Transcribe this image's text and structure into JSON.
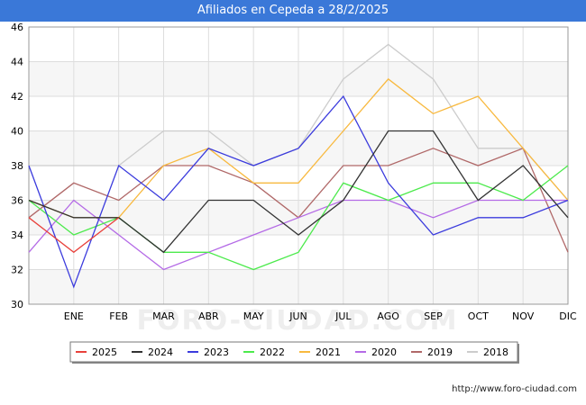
{
  "title": "Afiliados en Cepeda a 28/2/2025",
  "watermark": "FORO-CIUDAD.COM",
  "footer": "http://www.foro-ciudad.com",
  "chart_data": {
    "type": "line",
    "categories": [
      "",
      "ENE",
      "FEB",
      "MAR",
      "ABR",
      "MAY",
      "JUN",
      "JUL",
      "AGO",
      "SEP",
      "OCT",
      "NOV",
      "DIC"
    ],
    "ylim": [
      30,
      46
    ],
    "yticks": [
      30,
      32,
      34,
      36,
      38,
      40,
      42,
      44,
      46
    ],
    "grid": true,
    "legend_position": "bottom",
    "series": [
      {
        "name": "2025",
        "color": "#e8413b",
        "values": [
          35,
          33,
          35,
          null,
          null,
          null,
          null,
          null,
          null,
          null,
          null,
          null,
          null
        ]
      },
      {
        "name": "2024",
        "color": "#333333",
        "values": [
          36,
          35,
          35,
          33,
          36,
          36,
          34,
          36,
          40,
          40,
          36,
          38,
          35
        ]
      },
      {
        "name": "2023",
        "color": "#3b3bdd",
        "values": [
          38,
          31,
          38,
          36,
          39,
          38,
          39,
          42,
          37,
          34,
          35,
          35,
          36
        ]
      },
      {
        "name": "2022",
        "color": "#4cea4c",
        "values": [
          36,
          34,
          35,
          33,
          33,
          32,
          33,
          37,
          36,
          37,
          37,
          36,
          38
        ]
      },
      {
        "name": "2021",
        "color": "#f8b93f",
        "values": [
          36,
          35,
          35,
          38,
          39,
          37,
          37,
          40,
          43,
          41,
          42,
          39,
          36
        ]
      },
      {
        "name": "2020",
        "color": "#b46ae6",
        "values": [
          33,
          36,
          34,
          32,
          33,
          34,
          35,
          36,
          36,
          35,
          36,
          36,
          36
        ]
      },
      {
        "name": "2019",
        "color": "#b06868",
        "values": [
          35,
          37,
          36,
          38,
          38,
          37,
          35,
          38,
          38,
          39,
          38,
          39,
          33
        ]
      },
      {
        "name": "2018",
        "color": "#cccccc",
        "values": [
          38,
          38,
          38,
          40,
          40,
          38,
          39,
          43,
          45,
          43,
          39,
          39,
          36
        ]
      }
    ]
  }
}
